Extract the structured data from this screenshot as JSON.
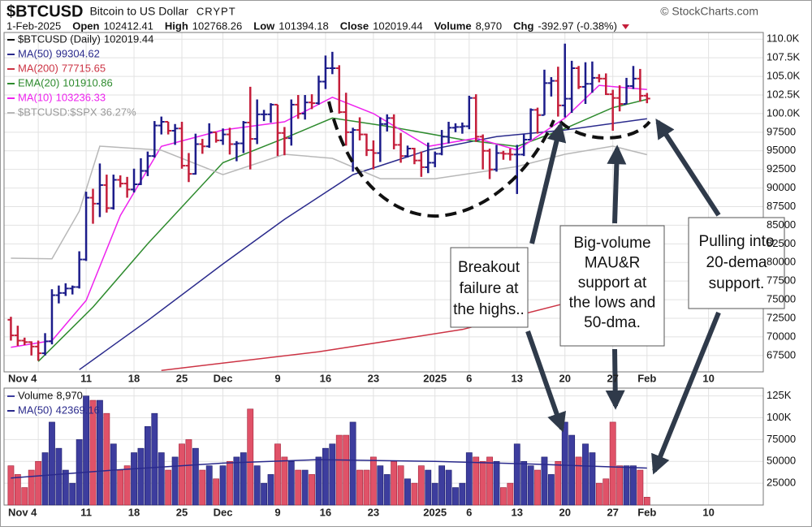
{
  "header": {
    "symbol": "$BTCUSD",
    "description": "Bitcoin to US Dollar",
    "exchange": "CRYPT",
    "date": "1-Feb-2025",
    "copyright": "© StockCharts.com",
    "open_label": "Open",
    "high_label": "High",
    "low_label": "Low",
    "close_label": "Close",
    "volume_label": "Volume",
    "change_label": "Chg",
    "change": "-392.97 (-0.38%)"
  },
  "annotations": [
    {
      "text": [
        "Breakout",
        "failure at",
        "the highs.."
      ]
    },
    {
      "text": [
        "Big-volume",
        "MAU&R",
        "support at",
        "the lows and",
        "50-dma."
      ]
    },
    {
      "text": [
        "Pulling into",
        "20-dema",
        "support."
      ]
    }
  ],
  "chart_data": {
    "type": "ohlc",
    "name": "$BTCUSD (Daily)",
    "up_color": "#1c1c8a",
    "down_color": "#c41e3a",
    "grid": true,
    "xlim": [
      "2024-10-30",
      "2025-02-18"
    ],
    "xticks": [
      {
        "value": "2024-11-04",
        "label": "Nov 4"
      },
      {
        "value": "2024-11-11",
        "label": "11"
      },
      {
        "value": "2024-11-18",
        "label": "18"
      },
      {
        "value": "2024-11-25",
        "label": "25"
      },
      {
        "value": "2024-12-01",
        "label": "Dec"
      },
      {
        "value": "2024-12-09",
        "label": "9"
      },
      {
        "value": "2024-12-16",
        "label": "16"
      },
      {
        "value": "2024-12-23",
        "label": "23"
      },
      {
        "value": "2025-01-01",
        "label": "2025"
      },
      {
        "value": "2025-01-06",
        "label": "6"
      },
      {
        "value": "2025-01-13",
        "label": "13"
      },
      {
        "value": "2025-01-20",
        "label": "20"
      },
      {
        "value": "2025-01-27",
        "label": "27"
      },
      {
        "value": "2025-02-01",
        "label": "Feb"
      },
      {
        "value": "2025-02-10",
        "label": "10"
      }
    ],
    "ylim": [
      65300,
      110900
    ],
    "yticks": [
      {
        "value": 110000,
        "label": "110.0K"
      },
      {
        "value": 107500,
        "label": "107.5K"
      },
      {
        "value": 105000,
        "label": "105.0K"
      },
      {
        "value": 102500,
        "label": "102.5K"
      },
      {
        "value": 100000,
        "label": "100.0K"
      },
      97500,
      95000,
      92500,
      90000,
      87500,
      85000,
      82500,
      80000,
      77500,
      75000,
      72500,
      70000,
      67500
    ],
    "y2lim": [
      25.07,
      42.57
    ],
    "x": [
      "2024-10-31",
      "2024-11-01",
      "2024-11-02",
      "2024-11-03",
      "2024-11-04",
      "2024-11-05",
      "2024-11-06",
      "2024-11-07",
      "2024-11-08",
      "2024-11-09",
      "2024-11-10",
      "2024-11-11",
      "2024-11-12",
      "2024-11-13",
      "2024-11-14",
      "2024-11-15",
      "2024-11-16",
      "2024-11-17",
      "2024-11-18",
      "2024-11-19",
      "2024-11-20",
      "2024-11-21",
      "2024-11-22",
      "2024-11-23",
      "2024-11-24",
      "2024-11-25",
      "2024-11-26",
      "2024-11-27",
      "2024-11-28",
      "2024-11-29",
      "2024-11-30",
      "2024-12-01",
      "2024-12-02",
      "2024-12-03",
      "2024-12-04",
      "2024-12-05",
      "2024-12-06",
      "2024-12-07",
      "2024-12-08",
      "2024-12-09",
      "2024-12-10",
      "2024-12-11",
      "2024-12-12",
      "2024-12-13",
      "2024-12-14",
      "2024-12-15",
      "2024-12-16",
      "2024-12-17",
      "2024-12-18",
      "2024-12-19",
      "2024-12-20",
      "2024-12-21",
      "2024-12-22",
      "2024-12-23",
      "2024-12-24",
      "2024-12-25",
      "2024-12-26",
      "2024-12-27",
      "2024-12-28",
      "2024-12-29",
      "2024-12-30",
      "2024-12-31",
      "2025-01-01",
      "2025-01-02",
      "2025-01-03",
      "2025-01-04",
      "2025-01-05",
      "2025-01-06",
      "2025-01-07",
      "2025-01-08",
      "2025-01-09",
      "2025-01-10",
      "2025-01-11",
      "2025-01-12",
      "2025-01-13",
      "2025-01-14",
      "2025-01-15",
      "2025-01-16",
      "2025-01-17",
      "2025-01-18",
      "2025-01-19",
      "2025-01-20",
      "2025-01-21",
      "2025-01-22",
      "2025-01-23",
      "2025-01-24",
      "2025-01-25",
      "2025-01-26",
      "2025-01-27",
      "2025-01-28",
      "2025-01-29",
      "2025-01-30",
      "2025-01-31",
      "2025-02-01"
    ],
    "open": [
      72300,
      70200,
      69500,
      69300,
      68700,
      67800,
      69400,
      75600,
      75900,
      76500,
      76700,
      80400,
      88700,
      87900,
      90400,
      87300,
      91100,
      90600,
      89800,
      90500,
      92300,
      94300,
      98400,
      98900,
      97700,
      98000,
      93000,
      91900,
      95900,
      95600,
      97500,
      96400,
      97200,
      95900,
      96000,
      98800,
      96600,
      99900,
      99900,
      101200,
      97400,
      96700,
      101200,
      100000,
      101500,
      101400,
      104300,
      106100,
      106100,
      100200,
      97500,
      97800,
      97200,
      95100,
      94700,
      98600,
      99400,
      95800,
      94300,
      95300,
      93700,
      92800,
      93400,
      94600,
      96900,
      98100,
      98200,
      98300,
      102100,
      96900,
      95000,
      92500,
      94700,
      94600,
      94500,
      94500,
      96500,
      100500,
      99800,
      104100,
      104400,
      101100,
      102000,
      106100,
      103600,
      104000,
      104800,
      104700,
      102600,
      102100,
      101300,
      103700,
      104700,
      102412.41
    ],
    "high": [
      72700,
      71500,
      69900,
      69400,
      69500,
      70500,
      76400,
      76900,
      77200,
      76900,
      81500,
      89500,
      89900,
      93300,
      91800,
      91800,
      91700,
      91500,
      92600,
      94000,
      94900,
      99000,
      99600,
      98900,
      98600,
      98900,
      94700,
      97300,
      96600,
      98700,
      97500,
      98000,
      98100,
      96300,
      99000,
      103600,
      101900,
      100500,
      101400,
      101200,
      98200,
      101900,
      102500,
      102500,
      102600,
      105100,
      107800,
      108300,
      106500,
      102800,
      98100,
      99500,
      97300,
      96400,
      99500,
      99900,
      99900,
      97400,
      95700,
      95400,
      94900,
      96100,
      94900,
      97800,
      98900,
      98700,
      98800,
      102400,
      102600,
      97200,
      95300,
      95800,
      95000,
      95300,
      95800,
      97300,
      100700,
      100800,
      105900,
      104900,
      106300,
      109400,
      107100,
      106400,
      106900,
      107000,
      105300,
      105400,
      103200,
      103800,
      104800,
      106400,
      106000,
      102768.26
    ],
    "low": [
      69500,
      68800,
      68900,
      67500,
      66800,
      67500,
      69000,
      74500,
      75500,
      75700,
      76500,
      80200,
      85200,
      86100,
      86700,
      87100,
      90100,
      88700,
      89400,
      90400,
      91600,
      94100,
      97200,
      97200,
      95800,
      92600,
      90800,
      91800,
      94600,
      95400,
      96100,
      95800,
      94500,
      93600,
      94700,
      92500,
      95900,
      99000,
      98800,
      94300,
      94400,
      95700,
      99300,
      99200,
      100600,
      101200,
      103300,
      105300,
      100000,
      95700,
      92200,
      96400,
      94300,
      92500,
      93500,
      97600,
      95200,
      93400,
      94100,
      93200,
      91500,
      92000,
      92800,
      94400,
      96000,
      97500,
      97300,
      97900,
      96200,
      92500,
      91200,
      92200,
      93800,
      93700,
      89200,
      94300,
      96500,
      97300,
      99800,
      102300,
      99600,
      99500,
      100100,
      103300,
      101300,
      102800,
      104200,
      102500,
      97700,
      100300,
      101300,
      103300,
      101600,
      101394.18
    ],
    "close": [
      70200,
      69500,
      69300,
      68700,
      67800,
      69400,
      75600,
      75900,
      76500,
      76700,
      80400,
      88700,
      87900,
      90400,
      87300,
      91100,
      90600,
      89800,
      90500,
      92300,
      94300,
      98400,
      98900,
      97700,
      98000,
      93000,
      91900,
      95900,
      95600,
      97500,
      96400,
      97200,
      95900,
      96000,
      98800,
      96600,
      99900,
      99900,
      101200,
      97400,
      96700,
      101200,
      100000,
      101500,
      101400,
      104300,
      106100,
      106100,
      100200,
      97500,
      97800,
      97200,
      95100,
      94700,
      98600,
      99400,
      95800,
      94300,
      95300,
      93700,
      92800,
      93400,
      94600,
      96900,
      98100,
      98200,
      98300,
      102100,
      96900,
      95000,
      92500,
      94700,
      94600,
      94500,
      94500,
      96500,
      100500,
      99800,
      104100,
      104400,
      101100,
      102000,
      106100,
      103600,
      104000,
      104800,
      104700,
      102600,
      102100,
      101300,
      103700,
      104700,
      102400,
      102019.44
    ],
    "lines": [
      {
        "name": "MA(50)",
        "color": "#2a2a8c",
        "x": [
          "2024-11-10",
          "2024-11-20",
          "2024-12-01",
          "2024-12-10",
          "2024-12-20",
          "2024-12-31",
          "2025-01-10",
          "2025-01-20",
          "2025-02-01"
        ],
        "values": [
          65600,
          72200,
          79800,
          85800,
          91800,
          95100,
          96900,
          97800,
          99304.62
        ]
      },
      {
        "name": "MA(200)",
        "color": "#cc3344",
        "x": [
          "2024-11-22",
          "2024-12-15",
          "2025-01-05",
          "2025-01-20",
          "2025-02-01"
        ],
        "values": [
          65500,
          68000,
          71000,
          74500,
          77715.65
        ]
      },
      {
        "name": "EMA(20)",
        "color": "#2e8b2e",
        "x": [
          "2024-11-04",
          "2024-11-12",
          "2024-11-20",
          "2024-12-01",
          "2024-12-10",
          "2024-12-17",
          "2024-12-25",
          "2025-01-05",
          "2025-01-13",
          "2025-01-20",
          "2025-01-27",
          "2025-02-01"
        ],
        "values": [
          66700,
          74000,
          82500,
          93400,
          96700,
          99400,
          98300,
          96500,
          95600,
          98000,
          100800,
          101910.86
        ]
      },
      {
        "name": "MA(10)",
        "color": "#ee22ee",
        "x": [
          "2024-10-31",
          "2024-11-06",
          "2024-11-11",
          "2024-11-16",
          "2024-11-22",
          "2024-12-01",
          "2024-12-10",
          "2024-12-17",
          "2024-12-23",
          "2024-12-31",
          "2025-01-07",
          "2025-01-13",
          "2025-01-20",
          "2025-01-25",
          "2025-02-01"
        ],
        "values": [
          68600,
          69500,
          74900,
          86300,
          95600,
          97800,
          98900,
          102200,
          100000,
          95600,
          96700,
          95100,
          99400,
          103800,
          103236.33
        ]
      },
      {
        "name": "$BTCUSD:$SPX",
        "color": "#b8b8b8",
        "axis": "y2",
        "x": [
          "2024-10-31",
          "2024-11-06",
          "2024-11-10",
          "2024-11-13",
          "2024-11-22",
          "2024-12-01",
          "2024-12-10",
          "2024-12-17",
          "2024-12-24",
          "2025-01-01",
          "2025-01-13",
          "2025-01-20",
          "2025-01-27",
          "2025-02-01"
        ],
        "values": [
          30.93,
          30.9,
          33.36,
          36.71,
          36.5,
          35.24,
          36.29,
          36.08,
          35.03,
          35.03,
          35.66,
          36.29,
          36.71,
          36.27
        ],
        "value_labels": [
          null,
          null,
          null,
          null,
          null,
          null,
          null,
          null,
          null,
          null,
          null,
          null,
          null,
          "36.27%"
        ]
      }
    ],
    "volume": {
      "name": "Volume",
      "ylim": [
        0,
        134000
      ],
      "yticks": [
        25000,
        50000,
        75000,
        {
          "value": 100000,
          "label": "100K"
        },
        {
          "value": 125000,
          "label": "125K"
        }
      ],
      "values": [
        45000,
        35000,
        20000,
        40000,
        50000,
        60000,
        95000,
        65000,
        40000,
        25000,
        75000,
        125000,
        120000,
        120000,
        105000,
        70000,
        40000,
        45000,
        60000,
        65000,
        90000,
        105000,
        60000,
        40000,
        55000,
        70000,
        75000,
        65000,
        40000,
        45000,
        30000,
        45000,
        50000,
        55000,
        60000,
        110000,
        45000,
        25000,
        35000,
        70000,
        55000,
        50000,
        40000,
        40000,
        35000,
        55000,
        65000,
        70000,
        80000,
        80000,
        95000,
        40000,
        40000,
        55000,
        45000,
        35000,
        50000,
        45000,
        30000,
        25000,
        45000,
        40000,
        25000,
        45000,
        40000,
        20000,
        25000,
        60000,
        55000,
        50000,
        55000,
        50000,
        20000,
        25000,
        70000,
        50000,
        45000,
        40000,
        55000,
        35000,
        50000,
        95000,
        80000,
        55000,
        70000,
        60000,
        25000,
        30000,
        95000,
        45000,
        45000,
        45000,
        40000,
        8970
      ],
      "value_labels": [
        null,
        null,
        null,
        null,
        null,
        null,
        null,
        null,
        null,
        null,
        null,
        null,
        null,
        null,
        null,
        null,
        null,
        null,
        null,
        null,
        null,
        null,
        null,
        null,
        null,
        null,
        null,
        null,
        null,
        null,
        null,
        null,
        null,
        null,
        null,
        null,
        null,
        null,
        null,
        null,
        null,
        null,
        null,
        null,
        null,
        null,
        null,
        null,
        null,
        null,
        null,
        null,
        null,
        null,
        null,
        null,
        null,
        null,
        null,
        null,
        null,
        null,
        null,
        null,
        null,
        null,
        null,
        null,
        null,
        null,
        null,
        null,
        null,
        null,
        null,
        null,
        null,
        null,
        null,
        null,
        null,
        null,
        null,
        null,
        null,
        null,
        null,
        null,
        null,
        null,
        null,
        null,
        null,
        "8,970"
      ],
      "lines": [
        {
          "name": "MA(50)",
          "color": "#2a2a8c",
          "x": [
            "2024-10-31",
            "2024-11-15",
            "2024-12-01",
            "2024-12-15",
            "2025-01-01",
            "2025-01-15",
            "2025-02-01"
          ],
          "values": [
            31000,
            40000,
            48000,
            52000,
            50000,
            47000,
            42369.16
          ]
        }
      ]
    }
  }
}
